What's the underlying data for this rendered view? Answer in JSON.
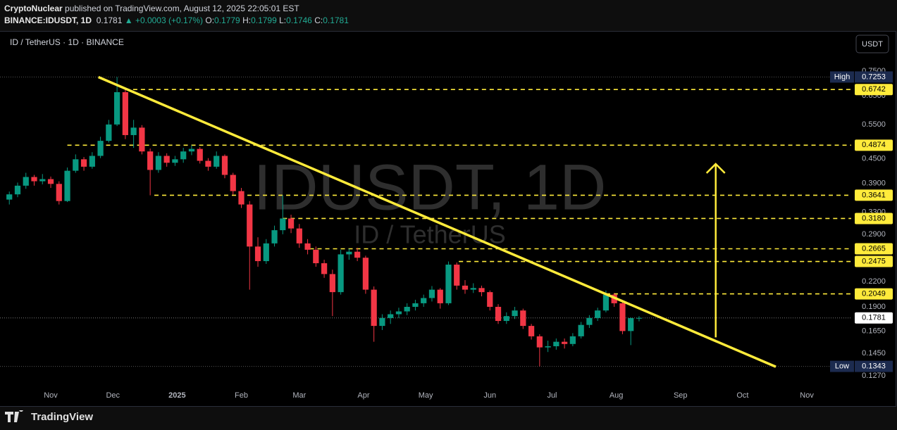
{
  "header": {
    "author": "CryptoNuclear",
    "published": "published on TradingView.com, August 12, 2025 22:05:01 EST",
    "symbol": "BINANCE:IDUSDT, 1D",
    "last": "0.1781",
    "change": "▲ +0.0003 (+0.17%)",
    "o_label": "O:",
    "o": "0.1779",
    "h_label": "H:",
    "h": "0.1799",
    "l_label": "L:",
    "l": "0.1746",
    "c_label": "C:",
    "c": "0.1781"
  },
  "currency_button": "USDT",
  "footer": {
    "brand": "TradingView"
  },
  "chart_data": {
    "type": "candlestick",
    "legend": "ID / TetherUS · 1D · BINANCE",
    "watermark": "IDUSDT, 1D",
    "watermark_sub": "ID / TetherUS",
    "up_color": "#089981",
    "down_color": "#f23645",
    "log_scale": true,
    "grid": false,
    "xlim": [
      -24.5,
      386.4
    ],
    "ylim": [
      0.121,
      0.815
    ],
    "xticks": [
      {
        "value": 0,
        "label": "Nov"
      },
      {
        "value": 30,
        "label": "Dec"
      },
      {
        "value": 61,
        "label": "2025"
      },
      {
        "value": 92,
        "label": "Feb"
      },
      {
        "value": 120,
        "label": "Mar"
      },
      {
        "value": 151,
        "label": "Apr"
      },
      {
        "value": 181,
        "label": "May"
      },
      {
        "value": 212,
        "label": "Jun"
      },
      {
        "value": 242,
        "label": "Jul"
      },
      {
        "value": 273,
        "label": "Aug"
      },
      {
        "value": 304,
        "label": "Sep"
      },
      {
        "value": 334,
        "label": "Oct"
      },
      {
        "value": 365,
        "label": "Nov"
      }
    ],
    "yticks": [
      {
        "value": 0.75,
        "label": "0.7500"
      },
      {
        "value": 0.65,
        "label": "0.6500"
      },
      {
        "value": 0.55,
        "label": "0.5500"
      },
      {
        "value": 0.45,
        "label": "0.4500"
      },
      {
        "value": 0.39,
        "label": "0.3900"
      },
      {
        "value": 0.33,
        "label": "0.3300"
      },
      {
        "value": 0.29,
        "label": "0.2900"
      },
      {
        "value": 0.22,
        "label": "0.2200"
      },
      {
        "value": 0.19,
        "label": "0.1900"
      },
      {
        "value": 0.165,
        "label": "0.1650"
      },
      {
        "value": 0.145,
        "label": "0.1450"
      },
      {
        "value": 0.127,
        "label": "0.1270"
      }
    ],
    "x": [
      -20,
      -16,
      -12,
      -8,
      -4,
      0,
      4,
      8,
      12,
      16,
      20,
      24,
      28,
      32,
      36,
      40,
      44,
      48,
      52,
      56,
      60,
      64,
      68,
      72,
      76,
      80,
      84,
      88,
      92,
      96,
      100,
      104,
      108,
      112,
      116,
      120,
      124,
      128,
      132,
      136,
      140,
      144,
      148,
      152,
      156,
      160,
      164,
      168,
      172,
      176,
      180,
      184,
      188,
      192,
      196,
      200,
      204,
      208,
      212,
      216,
      220,
      224,
      228,
      232,
      236,
      240,
      244,
      248,
      252,
      256,
      260,
      264,
      268,
      272,
      276,
      280,
      284
    ],
    "open": [
      0.355,
      0.366,
      0.385,
      0.405,
      0.395,
      0.4,
      0.389,
      0.352,
      0.42,
      0.449,
      0.43,
      0.458,
      0.5,
      0.55,
      0.664,
      0.517,
      0.54,
      0.47,
      0.422,
      0.458,
      0.44,
      0.449,
      0.47,
      0.477,
      0.445,
      0.43,
      0.458,
      0.41,
      0.373,
      0.345,
      0.27,
      0.248,
      0.275,
      0.297,
      0.318,
      0.3,
      0.275,
      0.265,
      0.245,
      0.23,
      0.207,
      0.258,
      0.262,
      0.253,
      0.21,
      0.17,
      0.178,
      0.182,
      0.185,
      0.19,
      0.194,
      0.2,
      0.21,
      0.194,
      0.243,
      0.215,
      0.21,
      0.212,
      0.207,
      0.19,
      0.175,
      0.18,
      0.186,
      0.17,
      0.16,
      0.15,
      0.151,
      0.155,
      0.153,
      0.16,
      0.171,
      0.178,
      0.186,
      0.204,
      0.194,
      0.165,
      0.1779
    ],
    "high": [
      0.372,
      0.392,
      0.415,
      0.41,
      0.412,
      0.406,
      0.395,
      0.428,
      0.462,
      0.455,
      0.468,
      0.512,
      0.565,
      0.7253,
      0.675,
      0.565,
      0.548,
      0.478,
      0.468,
      0.465,
      0.458,
      0.48,
      0.487,
      0.482,
      0.452,
      0.47,
      0.462,
      0.415,
      0.38,
      0.352,
      0.285,
      0.282,
      0.305,
      0.3641,
      0.325,
      0.308,
      0.282,
      0.27,
      0.25,
      0.236,
      0.265,
      0.2665,
      0.268,
      0.256,
      0.214,
      0.182,
      0.186,
      0.189,
      0.194,
      0.198,
      0.204,
      0.2145,
      0.212,
      0.2475,
      0.246,
      0.222,
      0.218,
      0.215,
      0.209,
      0.193,
      0.184,
      0.19,
      0.188,
      0.172,
      0.162,
      0.156,
      0.158,
      0.158,
      0.163,
      0.174,
      0.181,
      0.189,
      0.209,
      0.206,
      0.196,
      0.1785,
      0.1799
    ],
    "low": [
      0.345,
      0.36,
      0.378,
      0.385,
      0.388,
      0.38,
      0.345,
      0.35,
      0.415,
      0.42,
      0.425,
      0.452,
      0.495,
      0.545,
      0.505,
      0.48,
      0.462,
      0.364,
      0.415,
      0.43,
      0.432,
      0.44,
      0.46,
      0.438,
      0.42,
      0.425,
      0.402,
      0.365,
      0.338,
      0.21,
      0.24,
      0.244,
      0.27,
      0.29,
      0.292,
      0.268,
      0.258,
      0.24,
      0.225,
      0.18,
      0.204,
      0.25,
      0.248,
      0.205,
      0.155,
      0.166,
      0.172,
      0.178,
      0.181,
      0.186,
      0.19,
      0.196,
      0.188,
      0.192,
      0.21,
      0.205,
      0.206,
      0.202,
      0.186,
      0.172,
      0.172,
      0.177,
      0.167,
      0.157,
      0.1343,
      0.146,
      0.148,
      0.149,
      0.151,
      0.158,
      0.168,
      0.175,
      0.184,
      0.19,
      0.162,
      0.152,
      0.1746
    ],
    "close": [
      0.366,
      0.385,
      0.405,
      0.395,
      0.4,
      0.389,
      0.352,
      0.42,
      0.449,
      0.43,
      0.458,
      0.5,
      0.55,
      0.664,
      0.517,
      0.54,
      0.47,
      0.422,
      0.458,
      0.44,
      0.449,
      0.47,
      0.477,
      0.445,
      0.43,
      0.458,
      0.41,
      0.373,
      0.345,
      0.27,
      0.248,
      0.275,
      0.297,
      0.318,
      0.3,
      0.275,
      0.265,
      0.245,
      0.23,
      0.207,
      0.258,
      0.262,
      0.253,
      0.21,
      0.17,
      0.178,
      0.182,
      0.185,
      0.19,
      0.194,
      0.2,
      0.21,
      0.194,
      0.243,
      0.215,
      0.21,
      0.212,
      0.207,
      0.19,
      0.175,
      0.18,
      0.186,
      0.17,
      0.16,
      0.15,
      0.151,
      0.155,
      0.153,
      0.16,
      0.171,
      0.178,
      0.186,
      0.204,
      0.194,
      0.165,
      0.1779,
      0.1781
    ],
    "level_color": "#ffeb3b",
    "levels": [
      {
        "value": 0.6742,
        "start": 36
      },
      {
        "value": 0.4874,
        "start": 8
      },
      {
        "value": 0.3641,
        "start": 50
      },
      {
        "value": 0.318,
        "label": "0.3180",
        "start": 112
      },
      {
        "value": 0.2665,
        "start": 125
      },
      {
        "value": 0.2475,
        "start": 197
      },
      {
        "value": 0.2049,
        "start": 268
      }
    ],
    "high_marker": {
      "label": "High",
      "value": 0.7253
    },
    "low_marker": {
      "label": "Low",
      "value": 0.1343
    },
    "last_price": 0.1781,
    "trendline": {
      "x": [
        23,
        350
      ],
      "y": [
        0.725,
        0.134
      ]
    },
    "arrow": {
      "x": 321,
      "y": [
        0.159,
        0.437
      ]
    }
  }
}
